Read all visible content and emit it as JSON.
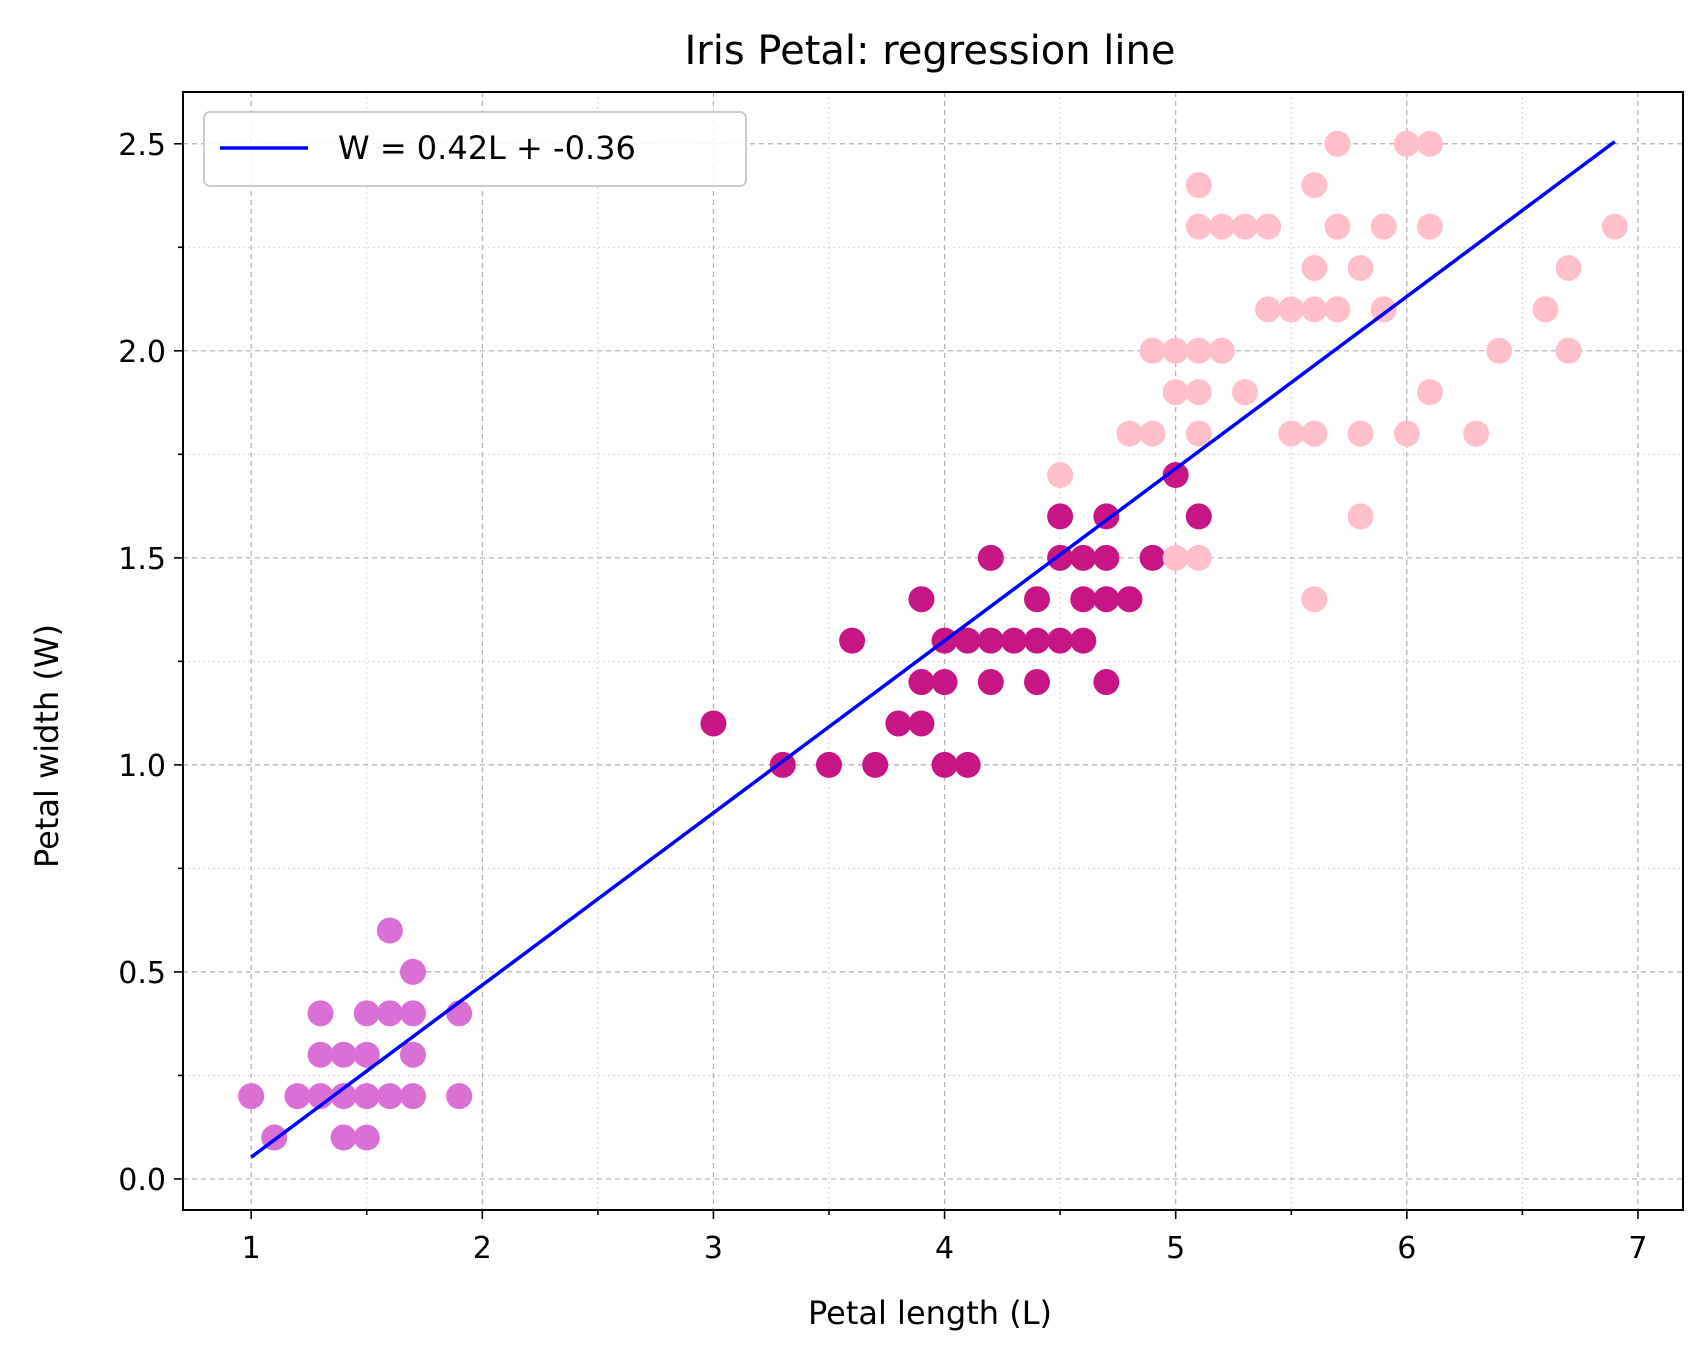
{
  "chart_data": {
    "type": "scatter",
    "title": "Iris Petal: regression line",
    "xlabel": "Petal length (L)",
    "ylabel": "Petal width (W)",
    "xlim": [
      0.705,
      7.195
    ],
    "ylim": [
      -0.075,
      2.625
    ],
    "xticks": [
      1,
      2,
      3,
      4,
      5,
      6,
      7
    ],
    "xtick_labels": [
      "1",
      "2",
      "3",
      "4",
      "5",
      "6",
      "7"
    ],
    "yticks": [
      0.0,
      0.5,
      1.0,
      1.5,
      2.0,
      2.5
    ],
    "ytick_labels": [
      "0.0",
      "0.5",
      "1.0",
      "1.5",
      "2.0",
      "2.5"
    ],
    "grid": true,
    "legend_position": "upper-left",
    "series": [
      {
        "color": "#da70d6",
        "points": [
          [
            1.0,
            0.2
          ],
          [
            1.1,
            0.1
          ],
          [
            1.2,
            0.2
          ],
          [
            1.3,
            0.2
          ],
          [
            1.3,
            0.3
          ],
          [
            1.3,
            0.4
          ],
          [
            1.4,
            0.1
          ],
          [
            1.4,
            0.2
          ],
          [
            1.4,
            0.3
          ],
          [
            1.5,
            0.1
          ],
          [
            1.5,
            0.2
          ],
          [
            1.5,
            0.3
          ],
          [
            1.5,
            0.4
          ],
          [
            1.6,
            0.2
          ],
          [
            1.6,
            0.4
          ],
          [
            1.6,
            0.6
          ],
          [
            1.7,
            0.2
          ],
          [
            1.7,
            0.3
          ],
          [
            1.7,
            0.4
          ],
          [
            1.7,
            0.5
          ],
          [
            1.9,
            0.2
          ],
          [
            1.9,
            0.4
          ]
        ]
      },
      {
        "color": "#c71585",
        "points": [
          [
            3.0,
            1.1
          ],
          [
            3.3,
            1.0
          ],
          [
            3.5,
            1.0
          ],
          [
            3.6,
            1.3
          ],
          [
            3.7,
            1.0
          ],
          [
            3.8,
            1.1
          ],
          [
            3.9,
            1.1
          ],
          [
            3.9,
            1.2
          ],
          [
            3.9,
            1.4
          ],
          [
            4.0,
            1.0
          ],
          [
            4.0,
            1.2
          ],
          [
            4.0,
            1.3
          ],
          [
            4.1,
            1.0
          ],
          [
            4.1,
            1.3
          ],
          [
            4.2,
            1.2
          ],
          [
            4.2,
            1.3
          ],
          [
            4.2,
            1.5
          ],
          [
            4.3,
            1.3
          ],
          [
            4.4,
            1.2
          ],
          [
            4.4,
            1.3
          ],
          [
            4.4,
            1.4
          ],
          [
            4.5,
            1.3
          ],
          [
            4.5,
            1.5
          ],
          [
            4.5,
            1.6
          ],
          [
            4.6,
            1.3
          ],
          [
            4.6,
            1.4
          ],
          [
            4.6,
            1.5
          ],
          [
            4.7,
            1.2
          ],
          [
            4.7,
            1.4
          ],
          [
            4.7,
            1.5
          ],
          [
            4.7,
            1.6
          ],
          [
            4.8,
            1.4
          ],
          [
            4.9,
            1.5
          ],
          [
            5.0,
            1.7
          ],
          [
            5.1,
            1.6
          ]
        ]
      },
      {
        "color": "#ffc0cb",
        "points": [
          [
            4.5,
            1.7
          ],
          [
            4.8,
            1.8
          ],
          [
            4.9,
            1.8
          ],
          [
            4.9,
            2.0
          ],
          [
            5.0,
            1.5
          ],
          [
            5.0,
            1.9
          ],
          [
            5.0,
            2.0
          ],
          [
            5.1,
            1.5
          ],
          [
            5.1,
            1.8
          ],
          [
            5.1,
            1.9
          ],
          [
            5.1,
            2.0
          ],
          [
            5.1,
            2.3
          ],
          [
            5.1,
            2.4
          ],
          [
            5.2,
            2.0
          ],
          [
            5.2,
            2.3
          ],
          [
            5.3,
            1.9
          ],
          [
            5.3,
            2.3
          ],
          [
            5.4,
            2.1
          ],
          [
            5.4,
            2.3
          ],
          [
            5.5,
            1.8
          ],
          [
            5.5,
            2.1
          ],
          [
            5.6,
            1.4
          ],
          [
            5.6,
            1.8
          ],
          [
            5.6,
            2.1
          ],
          [
            5.6,
            2.2
          ],
          [
            5.6,
            2.4
          ],
          [
            5.7,
            2.1
          ],
          [
            5.7,
            2.3
          ],
          [
            5.7,
            2.5
          ],
          [
            5.8,
            1.6
          ],
          [
            5.8,
            1.8
          ],
          [
            5.8,
            2.2
          ],
          [
            5.9,
            2.1
          ],
          [
            5.9,
            2.3
          ],
          [
            6.0,
            1.8
          ],
          [
            6.0,
            2.5
          ],
          [
            6.1,
            1.9
          ],
          [
            6.1,
            2.3
          ],
          [
            6.1,
            2.5
          ],
          [
            6.3,
            1.8
          ],
          [
            6.4,
            2.0
          ],
          [
            6.6,
            2.1
          ],
          [
            6.7,
            2.0
          ],
          [
            6.7,
            2.2
          ],
          [
            6.9,
            2.3
          ]
        ]
      }
    ],
    "regression": {
      "label": "W = 0.42L + -0.36",
      "color": "#0000ff",
      "slope": 0.4157,
      "intercept": -0.3631,
      "x_range": [
        1.0,
        6.9
      ]
    }
  }
}
